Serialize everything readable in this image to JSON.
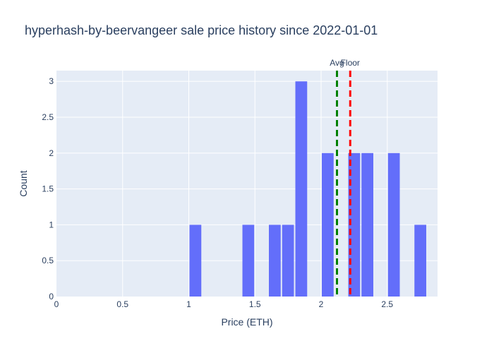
{
  "chart_data": {
    "type": "bar",
    "title": "hyperhash-by-beervangeer sale price history since 2022-01-01",
    "xlabel": "Price (ETH)",
    "ylabel": "Count",
    "xlim": [
      0,
      2.88
    ],
    "ylim": [
      0,
      3.15
    ],
    "x_ticks": [
      "0",
      "0.5",
      "1",
      "1.5",
      "2",
      "2.5"
    ],
    "y_ticks": [
      "0",
      "0.5",
      "1",
      "1.5",
      "2",
      "2.5",
      "3"
    ],
    "bin_width": 0.1,
    "bins": [
      {
        "x": 1.05,
        "count": 1
      },
      {
        "x": 1.45,
        "count": 1
      },
      {
        "x": 1.65,
        "count": 1
      },
      {
        "x": 1.75,
        "count": 1
      },
      {
        "x": 1.85,
        "count": 3
      },
      {
        "x": 2.05,
        "count": 2
      },
      {
        "x": 2.25,
        "count": 2
      },
      {
        "x": 2.35,
        "count": 2
      },
      {
        "x": 2.55,
        "count": 2
      },
      {
        "x": 2.75,
        "count": 1
      }
    ],
    "bar_color": "#636efa",
    "plot_background": "#e5ecf6",
    "reference_lines": [
      {
        "label": "Avg",
        "x": 2.12,
        "color": "#008000",
        "style": "dashed"
      },
      {
        "label": "Floor",
        "x": 2.22,
        "color": "#ff0000",
        "style": "dashed"
      }
    ]
  }
}
